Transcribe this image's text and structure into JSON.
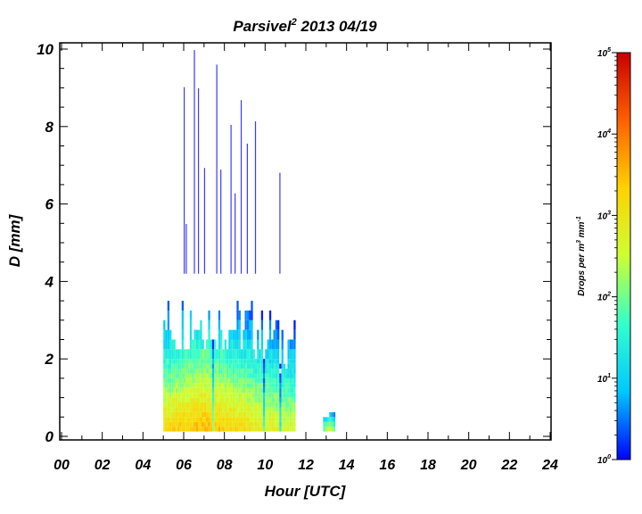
{
  "chart_data": {
    "type": "heatmap",
    "title": "Parsivel",
    "title_superscript": "2",
    "title_suffix": " 2013 04/19",
    "xlabel": "Hour [UTC]",
    "ylabel": "D [mm]",
    "xlim": [
      0,
      24
    ],
    "ylim": [
      0,
      10
    ],
    "x_ticks": [
      "00",
      "02",
      "04",
      "06",
      "08",
      "10",
      "12",
      "14",
      "16",
      "18",
      "20",
      "22",
      "24"
    ],
    "y_ticks": [
      "0",
      "2",
      "4",
      "6",
      "8",
      "10"
    ],
    "colorbar": {
      "label": "Drops per m",
      "label_sup1": "3",
      "label_mid": " mm",
      "label_sup2": "-1",
      "scale": "log",
      "range": [
        1,
        100000
      ],
      "tick_base": "10",
      "tick_exponents": [
        "0",
        "1",
        "2",
        "3",
        "4",
        "5"
      ],
      "colormap": [
        "#0000ff",
        "#00c8ff",
        "#33ffcc",
        "#ccff33",
        "#ffd200",
        "#ff6000",
        "#c80000"
      ]
    },
    "clusters": [
      {
        "x_start": 5.0,
        "x_end": 11.4,
        "peak_x": 6.9,
        "d_max": 3.8,
        "peak_log": 3.7
      },
      {
        "x_start": 12.85,
        "x_end": 13.35,
        "peak_x": 13.1,
        "d_max": 0.8,
        "peak_log": 3.2
      }
    ],
    "sparse_large_drop_columns": [
      6.0,
      6.1,
      6.5,
      6.7,
      7.0,
      7.6,
      7.8,
      8.3,
      8.5,
      8.8,
      9.1,
      9.5,
      10.7
    ]
  }
}
